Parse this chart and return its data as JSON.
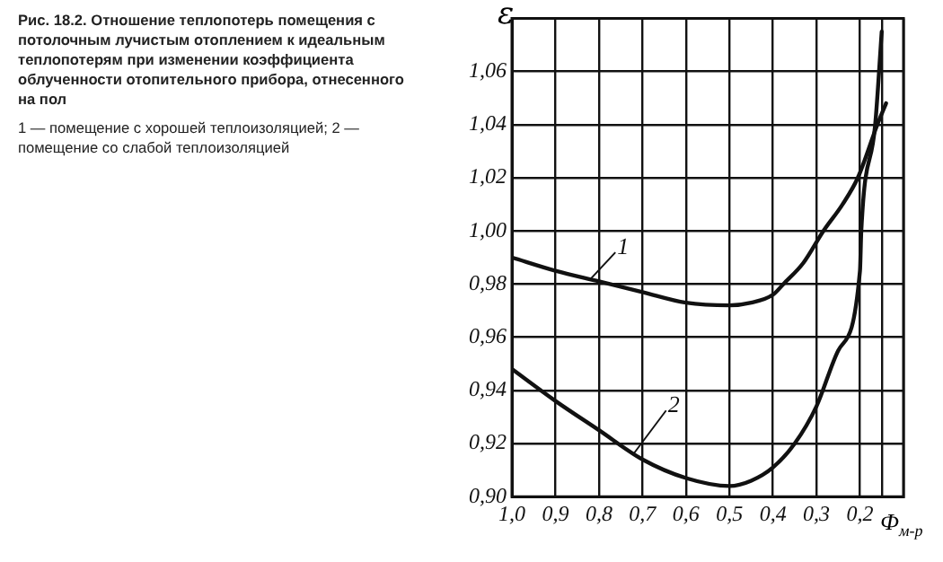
{
  "chart_data": {
    "type": "line",
    "title": "Рис. 18.2. Отношение теплопотерь помещения с потолочным лучистым отоплением к идеальным теплопотерям при изменении коэффициента облученности отопительного прибора, отнесенного на пол",
    "annotations": [
      "1 — помещение с хорошей теплоизоляцией; 2 — помещение со слабой теплоизоляцией"
    ],
    "xlabel": "Ф$_{м-р}$",
    "ylabel": "ε",
    "xlim": [
      1.0,
      0.1
    ],
    "xticks": [
      {
        "value": 1.0,
        "label": "1,0"
      },
      {
        "value": 0.9,
        "label": "0,9"
      },
      {
        "value": 0.8,
        "label": "0,8"
      },
      {
        "value": 0.7,
        "label": "0,7"
      },
      {
        "value": 0.6,
        "label": "0,6"
      },
      {
        "value": 0.5,
        "label": "0,5"
      },
      {
        "value": 0.4,
        "label": "0,4"
      },
      {
        "value": 0.3,
        "label": "0,3"
      },
      {
        "value": 0.2,
        "label": "0,2"
      },
      {
        "value": 0.15,
        "label": null
      },
      {
        "value": 0.1,
        "label": null
      }
    ],
    "ylim": [
      0.9,
      1.08
    ],
    "yticks": [
      {
        "value": 0.9,
        "label": "0,90"
      },
      {
        "value": 0.92,
        "label": "0,92"
      },
      {
        "value": 0.94,
        "label": "0,94"
      },
      {
        "value": 0.96,
        "label": "0,96"
      },
      {
        "value": 0.98,
        "label": "0,98"
      },
      {
        "value": 1.0,
        "label": "1,00"
      },
      {
        "value": 1.02,
        "label": "1,02"
      },
      {
        "value": 1.04,
        "label": "1,04"
      },
      {
        "value": 1.06,
        "label": "1,06"
      },
      {
        "value": 1.08,
        "label": null
      }
    ],
    "grid": true,
    "legend": false,
    "marker": "none",
    "line_style": "solid",
    "series": [
      {
        "name": "1",
        "color": "#111111",
        "x": [
          1.0,
          0.9,
          0.8,
          0.7,
          0.6,
          0.5,
          0.45,
          0.4,
          0.376,
          0.33,
          0.284,
          0.24,
          0.205,
          0.16,
          0.14
        ],
        "values": [
          0.99,
          0.985,
          0.981,
          0.977,
          0.973,
          0.972,
          0.973,
          0.976,
          0.98,
          0.988,
          1.0,
          1.01,
          1.02,
          1.04,
          1.048
        ]
      },
      {
        "name": "2",
        "color": "#111111",
        "x": [
          1.0,
          0.9,
          0.8,
          0.7,
          0.6,
          0.5,
          0.45,
          0.4,
          0.35,
          0.3,
          0.25,
          0.2,
          0.197,
          0.165,
          0.15
        ],
        "values": [
          0.948,
          0.936,
          0.925,
          0.914,
          0.907,
          0.904,
          0.906,
          0.911,
          0.92,
          0.934,
          0.955,
          0.985,
          1.0,
          1.04,
          1.075
        ]
      }
    ]
  }
}
